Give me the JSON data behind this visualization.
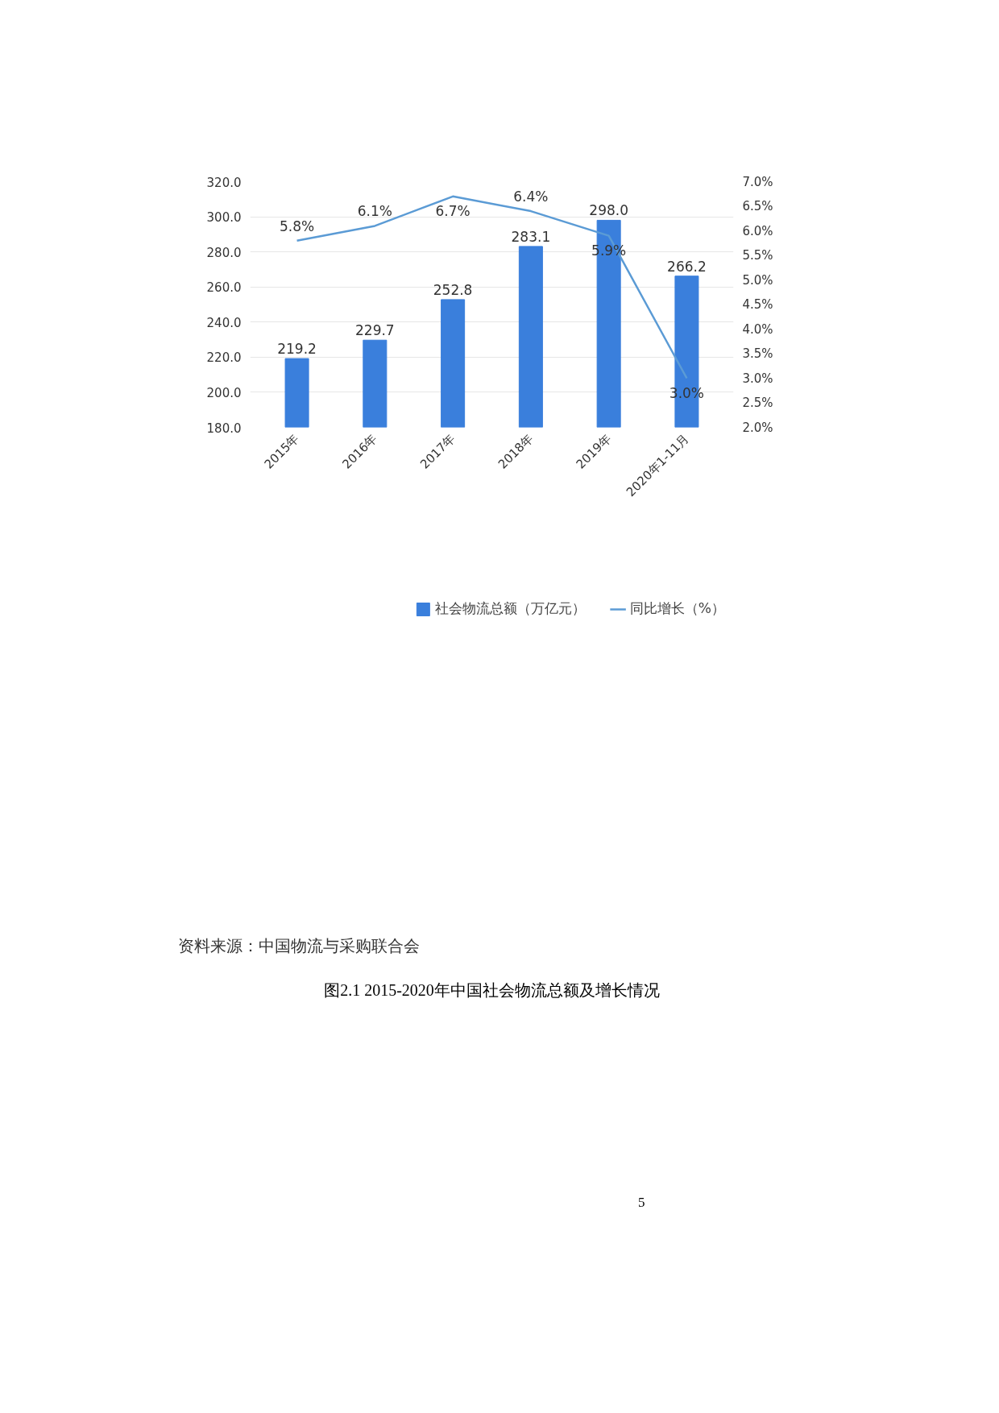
{
  "chart_data": {
    "type": "bar",
    "categories": [
      "2015年",
      "2016年",
      "2017年",
      "2018年",
      "2019年",
      "2020年1-11月"
    ],
    "series": [
      {
        "name": "社会物流总额（万亿元）",
        "color": "#3a7fdc",
        "values": [
          219.2,
          229.7,
          252.8,
          283.1,
          298.0,
          266.2
        ],
        "value_labels": [
          "219.2",
          "229.7",
          "252.8",
          "283.1",
          "298.0",
          "266.2"
        ]
      },
      {
        "name": "同比增长（%）",
        "type": "line",
        "axis": "y2",
        "color": "#5b9bd5",
        "values": [
          5.8,
          6.1,
          6.7,
          6.4,
          5.9,
          3.0
        ],
        "value_labels": [
          "5.8%",
          "6.1%",
          "6.7%",
          "6.4%",
          "5.9%",
          "3.0%"
        ]
      }
    ],
    "ylim": [
      180,
      320
    ],
    "yticks": [
      {
        "value": 180,
        "label": "180.0"
      },
      {
        "value": 200,
        "label": "200.0"
      },
      {
        "value": 220,
        "label": "220.0"
      },
      {
        "value": 240,
        "label": "240.0"
      },
      {
        "value": 260,
        "label": "260.0"
      },
      {
        "value": 280,
        "label": "280.0"
      },
      {
        "value": 300,
        "label": "300.0"
      },
      {
        "value": 320,
        "label": "320.0"
      }
    ],
    "y2lim": [
      2.0,
      7.0
    ],
    "y2ticks": [
      {
        "value": 2.0,
        "label": "2.0%"
      },
      {
        "value": 2.5,
        "label": "2.5%"
      },
      {
        "value": 3.0,
        "label": "3.0%"
      },
      {
        "value": 3.5,
        "label": "3.5%"
      },
      {
        "value": 4.0,
        "label": "4.0%"
      },
      {
        "value": 4.5,
        "label": "4.5%"
      },
      {
        "value": 5.0,
        "label": "5.0%"
      },
      {
        "value": 5.5,
        "label": "5.5%"
      },
      {
        "value": 6.0,
        "label": "6.0%"
      },
      {
        "value": 6.5,
        "label": "6.5%"
      },
      {
        "value": 7.0,
        "label": "7.0%"
      }
    ],
    "grid": "y",
    "legend": "bottom",
    "marker": "none",
    "line_style": "solid",
    "annotations": [
      "资料来源：中国物流与采购联合会",
      "图2.1 2015-2020年中国社会物流总额及增长情况",
      "5"
    ]
  }
}
